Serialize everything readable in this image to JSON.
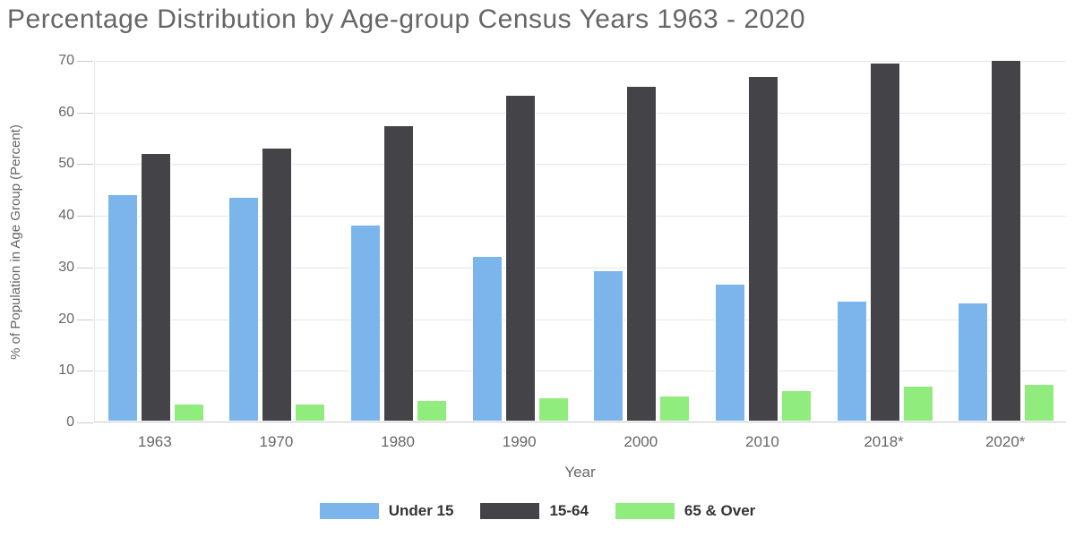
{
  "chart_data": {
    "type": "bar",
    "title": "Percentage Distribution by Age-group Census Years 1963 - 2020",
    "xlabel": "Year",
    "ylabel": "% of Population in Age Group (Percent)",
    "categories": [
      "1963",
      "1970",
      "1980",
      "1990",
      "2000",
      "2010",
      "2018*",
      "2020*"
    ],
    "series": [
      {
        "name": "Under 15",
        "color": "#7cb5ec",
        "values": [
          44.0,
          43.5,
          38.1,
          32.0,
          29.2,
          26.7,
          23.4,
          23.0
        ]
      },
      {
        "name": "15-64",
        "color": "#434348",
        "values": [
          52.0,
          53.0,
          57.4,
          63.2,
          65.0,
          66.9,
          69.5,
          70.0
        ]
      },
      {
        "name": "65 & Over",
        "color": "#90ed7d",
        "values": [
          3.5,
          3.4,
          4.2,
          4.6,
          5.1,
          6.1,
          6.9,
          7.3
        ]
      }
    ],
    "ylim": [
      0,
      70
    ],
    "yticks": [
      0,
      10,
      20,
      30,
      40,
      50,
      60,
      70
    ],
    "grid": true,
    "legend_position": "bottom"
  },
  "colors": {
    "title_text": "#666666",
    "axis_text": "#666666",
    "legend_text": "#333333",
    "gridline": "#e6e6e6",
    "axis_line": "#c9c9c9"
  }
}
